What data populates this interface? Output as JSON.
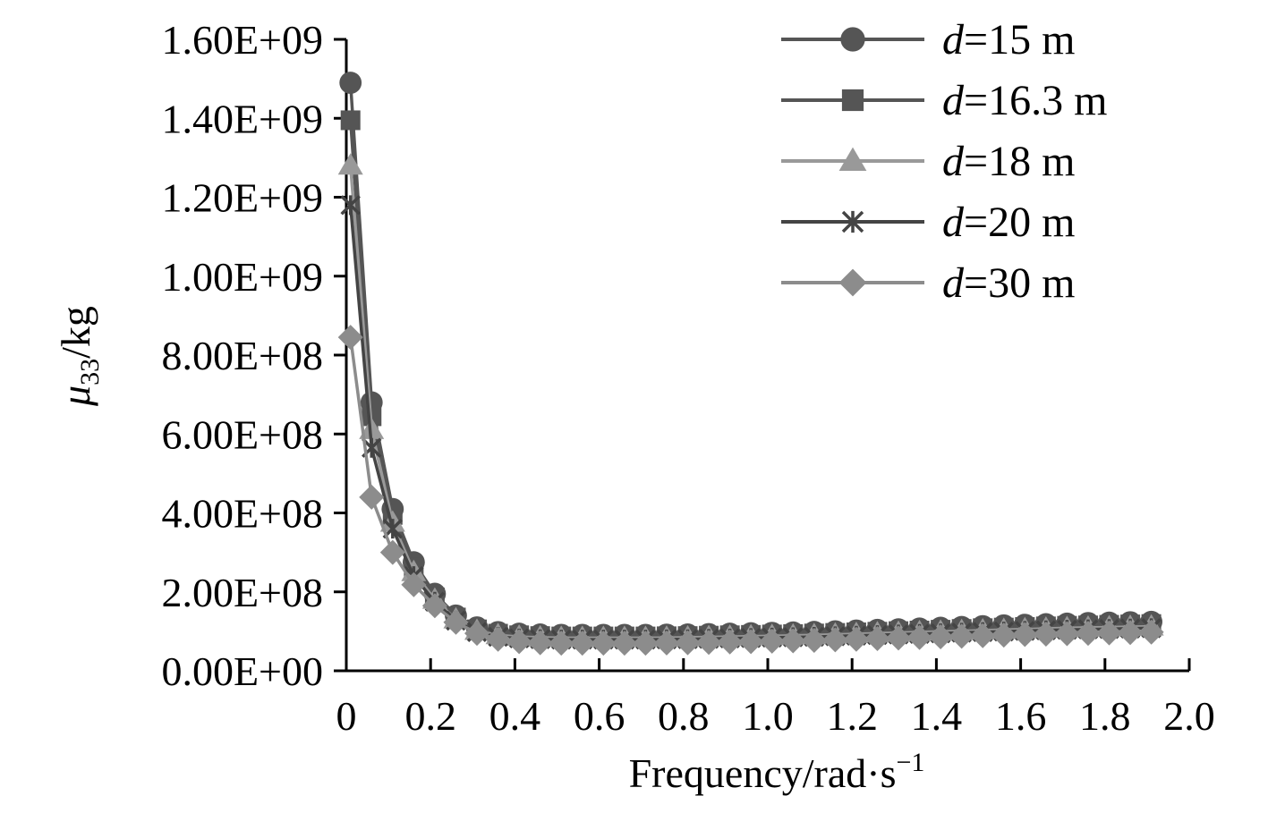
{
  "chart_data": {
    "type": "line",
    "xlabel": {
      "main": "Frequency/rad·s",
      "sup": "−1"
    },
    "ylabel": {
      "sym": "μ",
      "sub": "33",
      "unit": "/kg"
    },
    "xlim": [
      0,
      2.0
    ],
    "ylim": [
      0,
      1600000000
    ],
    "x_ticks": [
      "0",
      "0.2",
      "0.4",
      "0.6",
      "0.8",
      "1.0",
      "1.2",
      "1.4",
      "1.6",
      "1.8",
      "2.0"
    ],
    "y_ticks": [
      "0.00E+00",
      "2.00E+08",
      "4.00E+08",
      "6.00E+08",
      "8.00E+08",
      "1.00E+09",
      "1.20E+09",
      "1.40E+09",
      "1.60E+09"
    ],
    "grid": false,
    "legend_position": "top-right",
    "x": [
      0.01,
      0.06,
      0.11,
      0.16,
      0.21,
      0.26,
      0.31,
      0.36,
      0.41,
      0.46,
      0.51,
      0.56,
      0.61,
      0.66,
      0.71,
      0.76,
      0.81,
      0.86,
      0.91,
      0.96,
      1.01,
      1.06,
      1.11,
      1.16,
      1.21,
      1.26,
      1.31,
      1.36,
      1.41,
      1.46,
      1.51,
      1.56,
      1.61,
      1.66,
      1.71,
      1.76,
      1.81,
      1.86,
      1.91
    ],
    "series": [
      {
        "name": "d=15 m",
        "label_italic": "d",
        "label_rest": "=15 m",
        "color": "#555555",
        "marker": "circle",
        "values": [
          1490000000,
          680000000,
          410000000,
          275000000,
          195000000,
          140000000,
          110000000,
          98000000,
          94000000,
          92000000,
          91000000,
          91000000,
          91000000,
          91000000,
          91000000,
          91500000,
          92000000,
          93000000,
          94000000,
          95000000,
          96000000,
          97000000,
          98500000,
          100000000,
          102000000,
          103500000,
          105000000,
          107000000,
          109000000,
          111000000,
          113000000,
          115000000,
          116500000,
          118000000,
          119500000,
          121000000,
          122000000,
          123000000,
          124000000
        ]
      },
      {
        "name": "d=16.3 m",
        "label_italic": "d",
        "label_rest": "=16.3 m",
        "color": "#555555",
        "marker": "square",
        "values": [
          1395000000,
          645000000,
          395000000,
          262000000,
          186000000,
          135000000,
          105000000,
          94000000,
          90000000,
          88000000,
          87000000,
          87000000,
          87000000,
          87000000,
          87000000,
          87500000,
          88000000,
          89000000,
          90000000,
          91000000,
          92000000,
          93000000,
          94500000,
          96000000,
          97500000,
          99000000,
          100500000,
          102000000,
          104000000,
          106000000,
          108000000,
          109500000,
          111000000,
          112500000,
          114000000,
          115000000,
          116500000,
          117500000,
          118500000
        ]
      },
      {
        "name": "d=18 m",
        "label_italic": "d",
        "label_rest": "=18 m",
        "color": "#999999",
        "marker": "triangle",
        "values": [
          1280000000,
          610000000,
          375000000,
          250000000,
          180000000,
          130000000,
          101000000,
          90000000,
          86000000,
          84000000,
          83000000,
          83000000,
          83000000,
          83000000,
          83000000,
          83500000,
          84000000,
          85000000,
          86000000,
          87000000,
          88000000,
          89000000,
          90000000,
          91500000,
          93000000,
          94500000,
          96000000,
          97500000,
          99000000,
          100500000,
          102000000,
          103500000,
          105000000,
          106500000,
          108000000,
          109000000,
          110000000,
          111000000,
          112000000
        ]
      },
      {
        "name": "d=20 m",
        "label_italic": "d",
        "label_rest": "=20 m",
        "color": "#444444",
        "marker": "star",
        "values": [
          1180000000,
          565000000,
          360000000,
          240000000,
          175000000,
          127000000,
          98000000,
          86000000,
          82000000,
          80000000,
          79000000,
          79000000,
          79000000,
          79000000,
          79000000,
          79500000,
          80000000,
          81000000,
          82000000,
          83000000,
          84000000,
          85000000,
          86000000,
          87500000,
          89000000,
          90500000,
          92000000,
          93500000,
          95000000,
          96500000,
          98000000,
          99500000,
          101000000,
          102500000,
          104000000,
          105000000,
          106000000,
          107000000,
          108000000
        ]
      },
      {
        "name": "d=30 m",
        "label_italic": "d",
        "label_rest": "=30 m",
        "color": "#8c8c8c",
        "marker": "diamond",
        "values": [
          845000000,
          440000000,
          300000000,
          218000000,
          165000000,
          123000000,
          95000000,
          80000000,
          74000000,
          71000000,
          70000000,
          70000000,
          70000000,
          70000000,
          70000000,
          70500000,
          71000000,
          72000000,
          73000000,
          74000000,
          75000000,
          76000000,
          77000000,
          78500000,
          80000000,
          81500000,
          83000000,
          84500000,
          86000000,
          87500000,
          89000000,
          90500000,
          92000000,
          93000000,
          94000000,
          95000000,
          96000000,
          97000000,
          98000000
        ]
      }
    ]
  }
}
